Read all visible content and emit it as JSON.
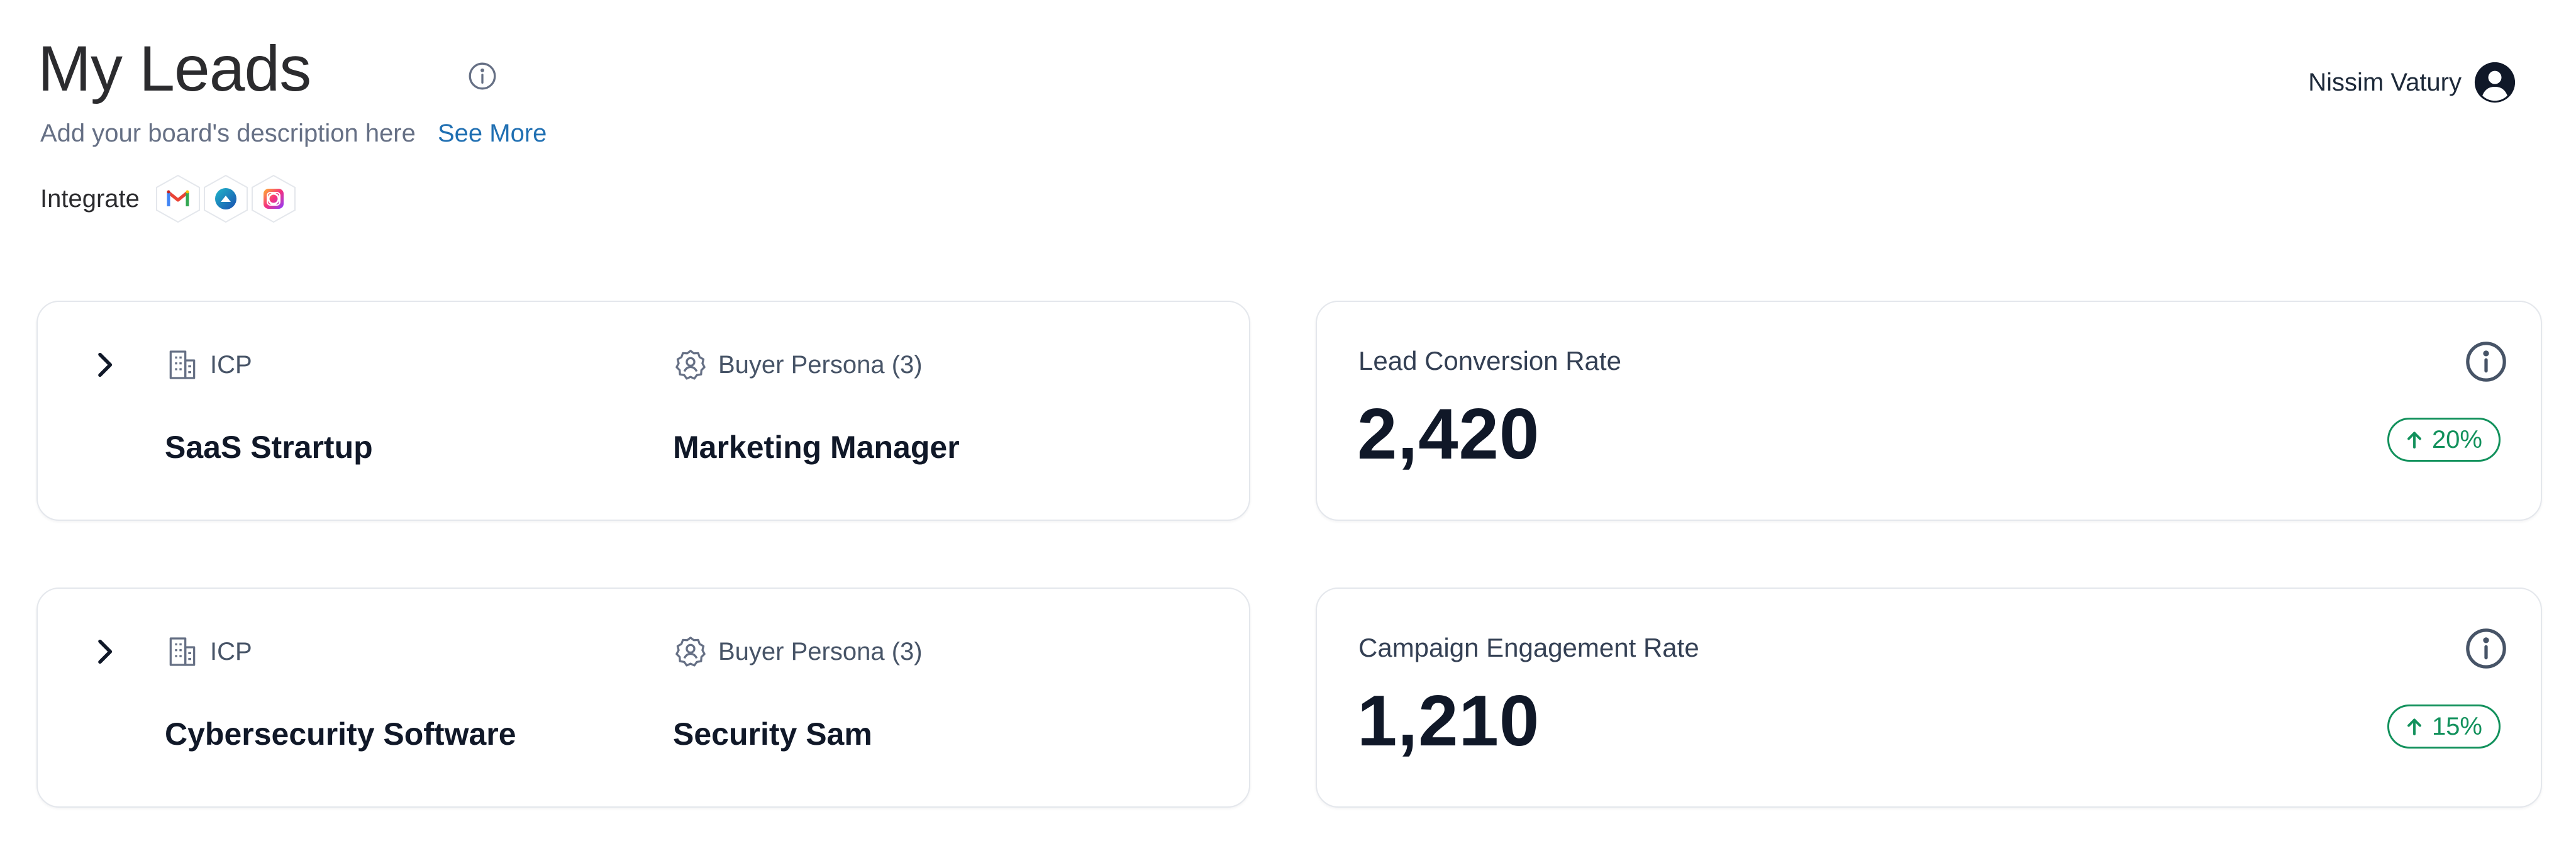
{
  "header": {
    "title": "My Leads",
    "description": "Add your board's description here",
    "see_more": "See More",
    "integrate_label": "Integrate",
    "integrations": [
      "gmail-icon",
      "integration-2-icon",
      "integration-3-icon"
    ]
  },
  "user": {
    "name": "Nissim Vatury"
  },
  "icp_cards": [
    {
      "icp_label": "ICP",
      "icp_value": "SaaS Strartup",
      "persona_label": "Buyer Persona (3)",
      "persona_value": "Marketing Manager"
    },
    {
      "icp_label": "ICP",
      "icp_value": "Cybersecurity Software",
      "persona_label": "Buyer Persona (3)",
      "persona_value": "Security Sam"
    }
  ],
  "metrics": [
    {
      "label": "Lead Conversion Rate",
      "value": "2,420",
      "change": "20%"
    },
    {
      "label": "Campaign Engagement Rate",
      "value": "1,210",
      "change": "15%"
    }
  ],
  "colors": {
    "accent_link": "#1f6fb2",
    "positive": "#12915c",
    "border": "#e4e7ec"
  }
}
